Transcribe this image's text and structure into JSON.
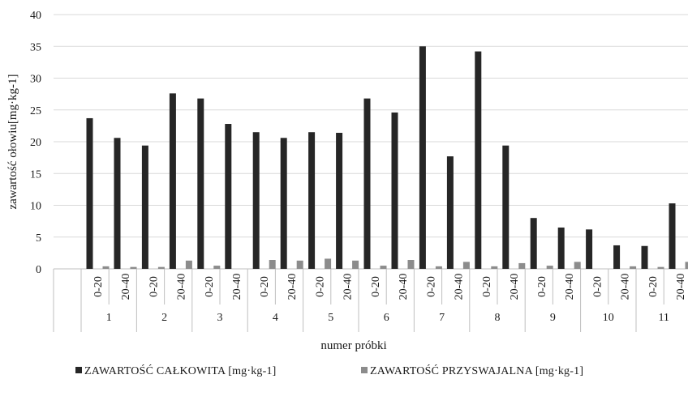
{
  "chart_data": {
    "type": "bar",
    "title": "",
    "ylabel": "zawartość ołowiu[mg·kg-1]",
    "xlabel": "numer próbki",
    "ylim": [
      0,
      40
    ],
    "yticks": [
      "0",
      "5",
      "10",
      "15",
      "20",
      "25",
      "30",
      "35",
      "40"
    ],
    "grid": "horizontal",
    "legend": "bottom",
    "groups": [
      "1",
      "2",
      "3",
      "4",
      "5",
      "6",
      "7",
      "8",
      "9",
      "10",
      "11"
    ],
    "depths": [
      "0-20",
      "20-40"
    ],
    "categories": [
      "1 0-20",
      "1 20-40",
      "2 0-20",
      "2 20-40",
      "3 0-20",
      "3 20-40",
      "4 0-20",
      "4 20-40",
      "5 0-20",
      "5 20-40",
      "6 0-20",
      "6 20-40",
      "7 0-20",
      "7 20-40",
      "8 0-20",
      "8 20-40",
      "9 0-20",
      "9 20-40",
      "10 0-20",
      "10 20-40",
      "11 0-20",
      "11 20-40"
    ],
    "series": [
      {
        "name": "ZAWARTOŚĆ CAŁKOWITA  [mg·kg-1]",
        "color": "#262626",
        "values": [
          23.7,
          20.6,
          19.4,
          27.6,
          26.8,
          22.8,
          21.5,
          20.6,
          21.5,
          21.4,
          26.8,
          24.6,
          35.0,
          17.7,
          34.2,
          19.4,
          8.0,
          6.5,
          6.2,
          3.7,
          3.6,
          10.3
        ]
      },
      {
        "name": "ZAWARTOŚĆ PRZYSWAJALNA [mg·kg-1]",
        "color": "#8c8c8c",
        "values": [
          0.4,
          0.3,
          0.3,
          1.3,
          0.5,
          0.0,
          1.4,
          1.3,
          1.6,
          1.3,
          0.5,
          1.4,
          0.4,
          1.1,
          0.4,
          0.9,
          0.5,
          1.1,
          0.0,
          0.4,
          0.3,
          1.1
        ]
      }
    ]
  }
}
